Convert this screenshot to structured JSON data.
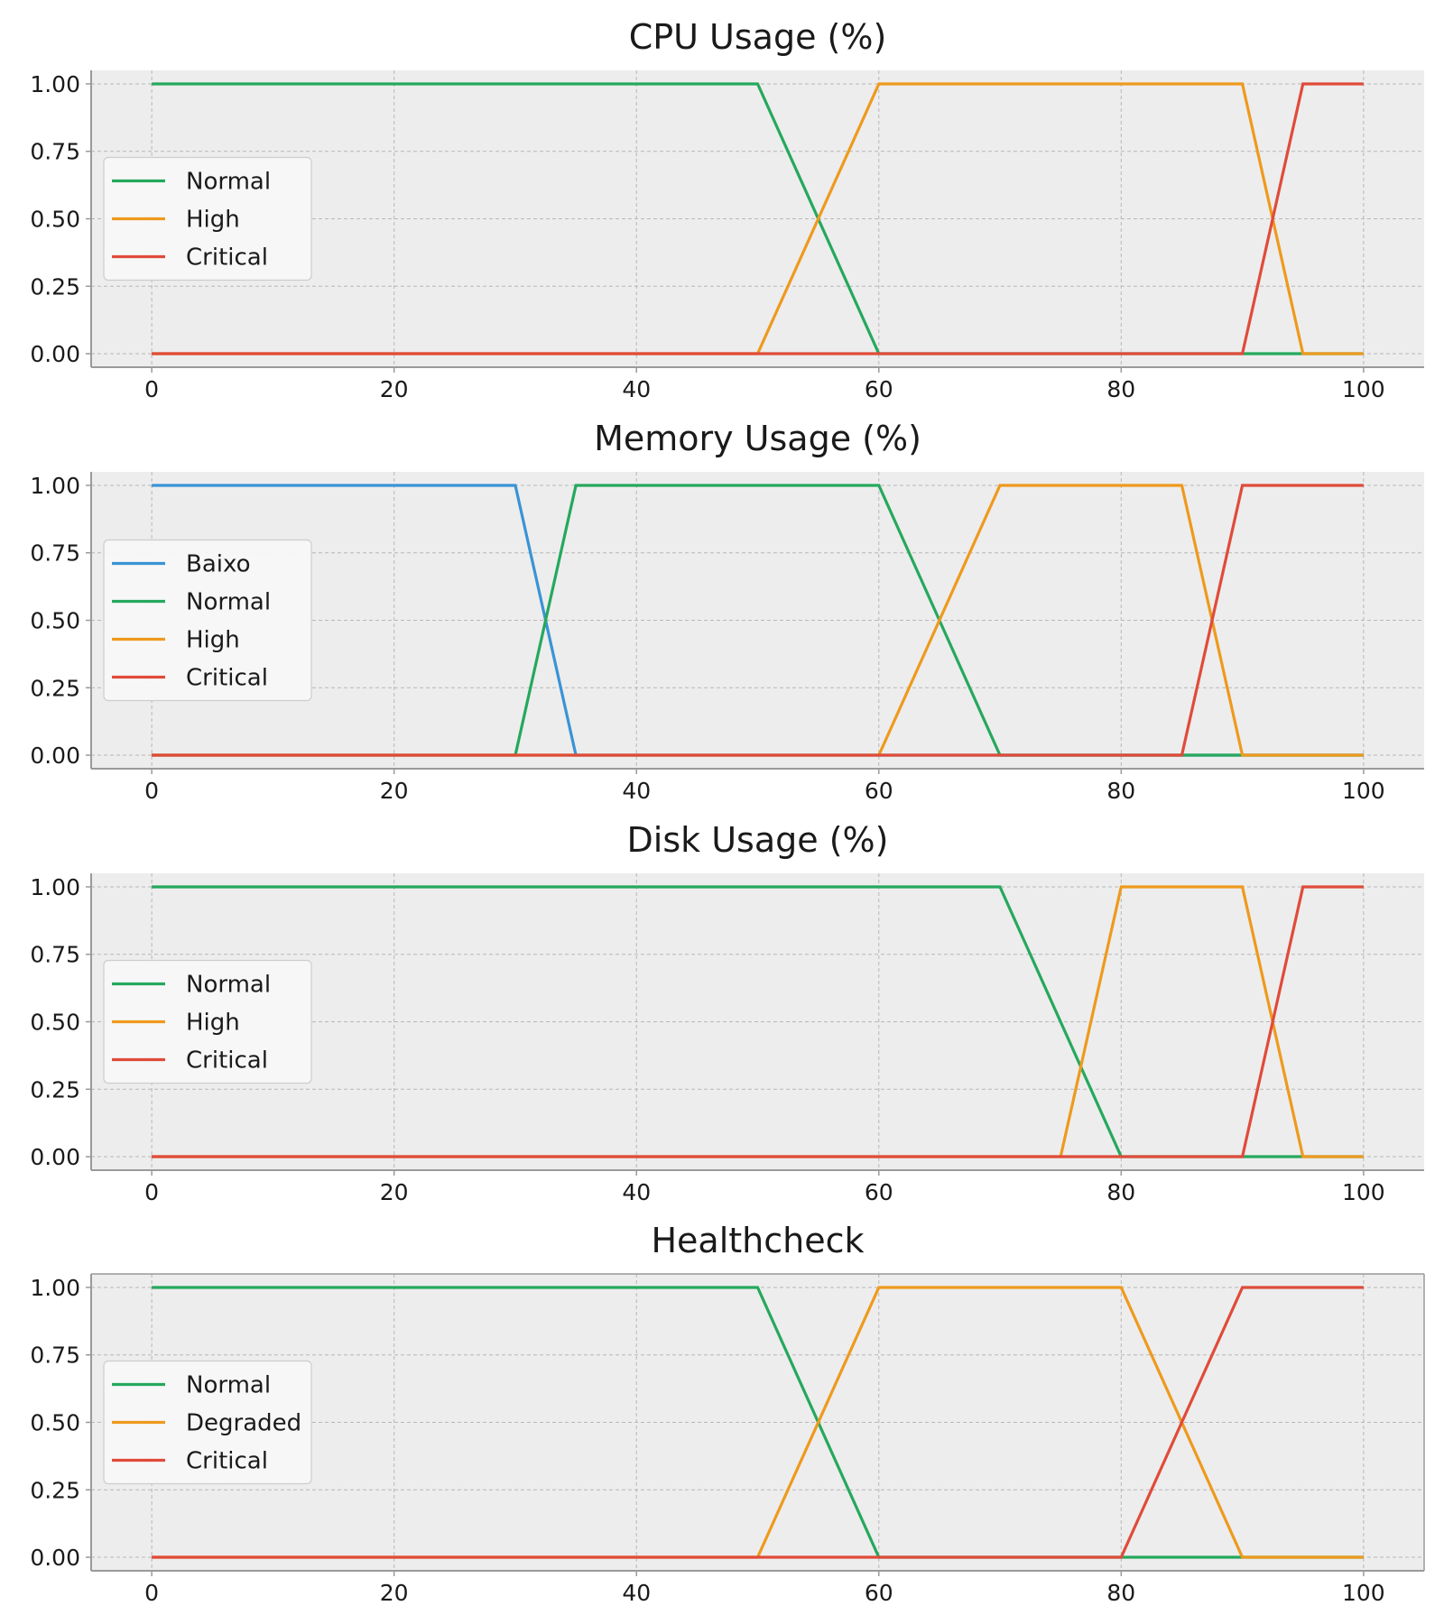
{
  "colors": {
    "plot_bg": "#ededed",
    "grid": "#b7b7b7",
    "axis": "#9a9a9a",
    "legend_bg": "#f8f8f8",
    "legend_border": "#cccccc",
    "blue": "#3a93d6",
    "green": "#25a85d",
    "orange": "#ee9a1d",
    "red": "#e04b3a"
  },
  "chart_data": [
    {
      "type": "line",
      "title": "CPU Usage (%)",
      "xlim": [
        -5,
        105
      ],
      "ylim": [
        -0.05,
        1.05
      ],
      "xticks": [
        "0",
        "20",
        "40",
        "60",
        "80",
        "100"
      ],
      "yticks": [
        "0.00",
        "0.25",
        "0.50",
        "0.75",
        "1.00"
      ],
      "grid": true,
      "legend": "center-left",
      "series": [
        {
          "name": "Normal",
          "color": "#25a85d",
          "x": [
            0,
            50,
            60,
            100
          ],
          "y": [
            1,
            1,
            0,
            0
          ]
        },
        {
          "name": "High",
          "color": "#ee9a1d",
          "x": [
            0,
            50,
            60,
            90,
            95,
            100
          ],
          "y": [
            0,
            0,
            1,
            1,
            0,
            0
          ]
        },
        {
          "name": "Critical",
          "color": "#e04b3a",
          "x": [
            0,
            90,
            95,
            100
          ],
          "y": [
            0,
            0,
            1,
            1
          ]
        }
      ]
    },
    {
      "type": "line",
      "title": "Memory Usage (%)",
      "xlim": [
        -5,
        105
      ],
      "ylim": [
        -0.05,
        1.05
      ],
      "xticks": [
        "0",
        "20",
        "40",
        "60",
        "80",
        "100"
      ],
      "yticks": [
        "0.00",
        "0.25",
        "0.50",
        "0.75",
        "1.00"
      ],
      "grid": true,
      "legend": "center-left",
      "series": [
        {
          "name": "Baixo",
          "color": "#3a93d6",
          "x": [
            0,
            30,
            35,
            100
          ],
          "y": [
            1,
            1,
            0,
            0
          ]
        },
        {
          "name": "Normal",
          "color": "#25a85d",
          "x": [
            0,
            30,
            35,
            60,
            70,
            100
          ],
          "y": [
            0,
            0,
            1,
            1,
            0,
            0
          ]
        },
        {
          "name": "High",
          "color": "#ee9a1d",
          "x": [
            0,
            60,
            70,
            85,
            90,
            100
          ],
          "y": [
            0,
            0,
            1,
            1,
            0,
            0
          ]
        },
        {
          "name": "Critical",
          "color": "#e04b3a",
          "x": [
            0,
            85,
            90,
            100
          ],
          "y": [
            0,
            0,
            1,
            1
          ]
        }
      ]
    },
    {
      "type": "line",
      "title": "Disk Usage (%)",
      "xlim": [
        -5,
        105
      ],
      "ylim": [
        -0.05,
        1.05
      ],
      "xticks": [
        "0",
        "20",
        "40",
        "60",
        "80",
        "100"
      ],
      "yticks": [
        "0.00",
        "0.25",
        "0.50",
        "0.75",
        "1.00"
      ],
      "grid": true,
      "legend": "center-left",
      "series": [
        {
          "name": "Normal",
          "color": "#25a85d",
          "x": [
            0,
            70,
            80,
            100
          ],
          "y": [
            1,
            1,
            0,
            0
          ]
        },
        {
          "name": "High",
          "color": "#ee9a1d",
          "x": [
            0,
            75,
            80,
            90,
            95,
            100
          ],
          "y": [
            0,
            0,
            1,
            1,
            0,
            0
          ]
        },
        {
          "name": "Critical",
          "color": "#e04b3a",
          "x": [
            0,
            90,
            95,
            100
          ],
          "y": [
            0,
            0,
            1,
            1
          ]
        }
      ]
    },
    {
      "type": "line",
      "title": "Healthcheck",
      "xlim": [
        -5,
        105
      ],
      "ylim": [
        -0.05,
        1.05
      ],
      "xticks": [
        "0",
        "20",
        "40",
        "60",
        "80",
        "100"
      ],
      "yticks": [
        "0.00",
        "0.25",
        "0.50",
        "0.75",
        "1.00"
      ],
      "grid": true,
      "legend": "center-left",
      "series": [
        {
          "name": "Normal",
          "color": "#25a85d",
          "x": [
            0,
            50,
            60,
            100
          ],
          "y": [
            1,
            1,
            0,
            0
          ]
        },
        {
          "name": "Degraded",
          "color": "#ee9a1d",
          "x": [
            0,
            50,
            60,
            80,
            90,
            100
          ],
          "y": [
            0,
            0,
            1,
            1,
            0,
            0
          ]
        },
        {
          "name": "Critical",
          "color": "#e04b3a",
          "x": [
            0,
            80,
            90,
            100
          ],
          "y": [
            0,
            0,
            1,
            1
          ]
        }
      ]
    }
  ]
}
